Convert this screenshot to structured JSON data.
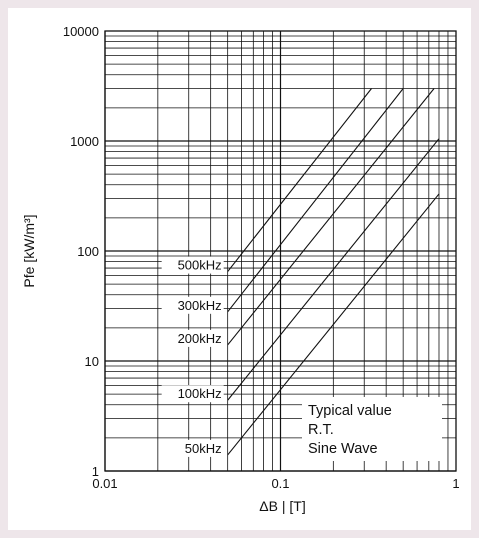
{
  "chart_data": {
    "type": "line",
    "title": "",
    "xlabel": "ΔB | [T]",
    "ylabel": "Pfe [kW/m³]",
    "xscale": "log",
    "yscale": "log",
    "xlim": [
      0.01,
      1
    ],
    "ylim": [
      1,
      10000
    ],
    "grid": true,
    "x_ticks": [
      "0.01",
      "0.1",
      "1"
    ],
    "y_ticks": [
      "1",
      "10",
      "100",
      "1000",
      "10000"
    ],
    "series": [
      {
        "name": "500kHz",
        "x": [
          0.05,
          0.33
        ],
        "y": [
          65,
          3000
        ]
      },
      {
        "name": "300kHz",
        "x": [
          0.05,
          0.5
        ],
        "y": [
          28,
          3000
        ]
      },
      {
        "name": "200kHz",
        "x": [
          0.05,
          0.75
        ],
        "y": [
          14,
          3000
        ]
      },
      {
        "name": "100kHz",
        "x": [
          0.05,
          0.8
        ],
        "y": [
          4.4,
          1050
        ]
      },
      {
        "name": "50kHz",
        "x": [
          0.05,
          0.8
        ],
        "y": [
          1.4,
          330
        ]
      }
    ],
    "annotations": [
      "Typical value",
      "R.T.",
      "Sine Wave"
    ]
  }
}
